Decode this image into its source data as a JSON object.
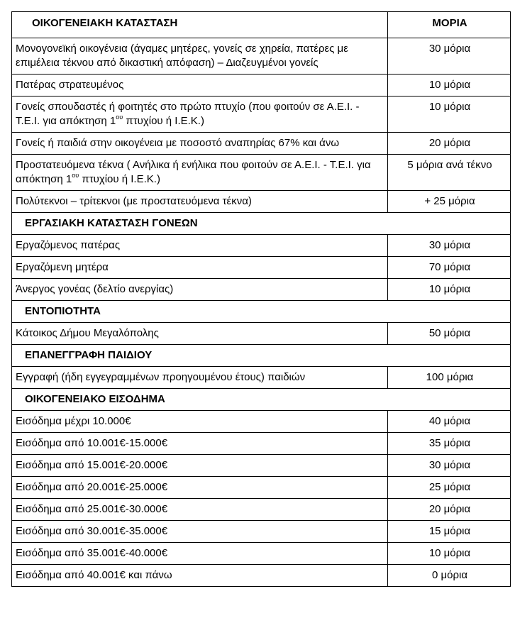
{
  "header": {
    "category": "ΟΙΚΟΓΕΝΕΙΑΚΗ ΚΑΤΑΣΤΑΣΗ",
    "points": "ΜΟΡΙΑ"
  },
  "rows": [
    {
      "type": "item",
      "text": "Μονογονεϊκή οικογένεια (άγαμες μητέρες, γονείς σε χηρεία, πατέρες με επιμέλεια τέκνου από δικαστική απόφαση) – Διαζευγμένοι γονείς",
      "points": "30 μόρια"
    },
    {
      "type": "item",
      "text": "Πατέρας στρατευμένος",
      "points": "10 μόρια"
    },
    {
      "type": "item",
      "text": "Γονείς σπουδαστές ή φοιτητές στο πρώτο πτυχίο (που φοιτούν σε Α.Ε.Ι.  - Τ.Ε.Ι.  για απόκτηση 1",
      "sup": "ου",
      "text_after": " πτυχίου ή  Ι.Ε.Κ.)",
      "points": "10 μόρια"
    },
    {
      "type": "item",
      "text": "Γονείς ή παιδιά στην οικογένεια  με ποσοστό αναπηρίας 67% και άνω",
      "points": "20 μόρια"
    },
    {
      "type": "item",
      "text": "Προστατευόμενα τέκνα  ( Ανήλικα  ή ενήλικα που φοιτούν σε Α.Ε.Ι. - Τ.Ε.Ι.  για απόκτηση 1",
      "sup": "ου",
      "text_after": " πτυχίου ή  Ι.Ε.Κ.)",
      "points": "5 μόρια ανά τέκνο"
    },
    {
      "type": "item",
      "text": "Πολύτεκνοι – τρίτεκνοι  (με προστατευόμενα τέκνα)",
      "points": "+ 25 μόρια"
    },
    {
      "type": "section",
      "text": "ΕΡΓΑΣΙΑΚΗ ΚΑΤΑΣΤΑΣΗ ΓΟΝΕΩΝ"
    },
    {
      "type": "item",
      "text": "Εργαζόμενος πατέρας",
      "points": "30 μόρια"
    },
    {
      "type": "item",
      "text": "Εργαζόμενη μητέρα",
      "points": "70 μόρια"
    },
    {
      "type": "item",
      "text": "Άνεργος γονέας  (δελτίο ανεργίας)",
      "points": "10 μόρια"
    },
    {
      "type": "section",
      "text": "ΕΝΤΟΠΙΟΤΗΤΑ"
    },
    {
      "type": "item",
      "text": "Κάτοικος  Δήμου Μεγαλόπολης",
      "points": "50 μόρια"
    },
    {
      "type": "section",
      "text": "ΕΠΑΝΕΓΓΡΑΦΗ ΠΑΙΔΙΟΥ"
    },
    {
      "type": "item",
      "text": "Εγγραφή  (ήδη εγγεγραμμένων προηγουμένου έτους)  παιδιών",
      "points": "100 μόρια"
    },
    {
      "type": "section",
      "text": "ΟΙΚΟΓΕΝΕΙΑΚΟ ΕΙΣΟΔΗΜΑ"
    },
    {
      "type": "item",
      "text": "Εισόδημα μέχρι  10.000€",
      "points": "40  μόρια"
    },
    {
      "type": "item",
      "text": "Εισόδημα από 10.001€-15.000€",
      "points": "35 μόρια"
    },
    {
      "type": "item",
      "text": "Εισόδημα από 15.001€-20.000€",
      "points": "30 μόρια"
    },
    {
      "type": "item",
      "text": "Εισόδημα από 20.001€-25.000€",
      "points": "25 μόρια"
    },
    {
      "type": "item",
      "text": "Εισόδημα από 25.001€-30.000€",
      "points": "20  μόρια"
    },
    {
      "type": "item",
      "text": "Εισόδημα από 30.001€-35.000€",
      "points": "15 μόρια"
    },
    {
      "type": "item",
      "text": "Εισόδημα από 35.001€-40.000€",
      "points": "10 μόρια"
    },
    {
      "type": "item",
      "text": "Εισόδημα από 40.001€ και πάνω",
      "points": "0 μόρια"
    }
  ]
}
